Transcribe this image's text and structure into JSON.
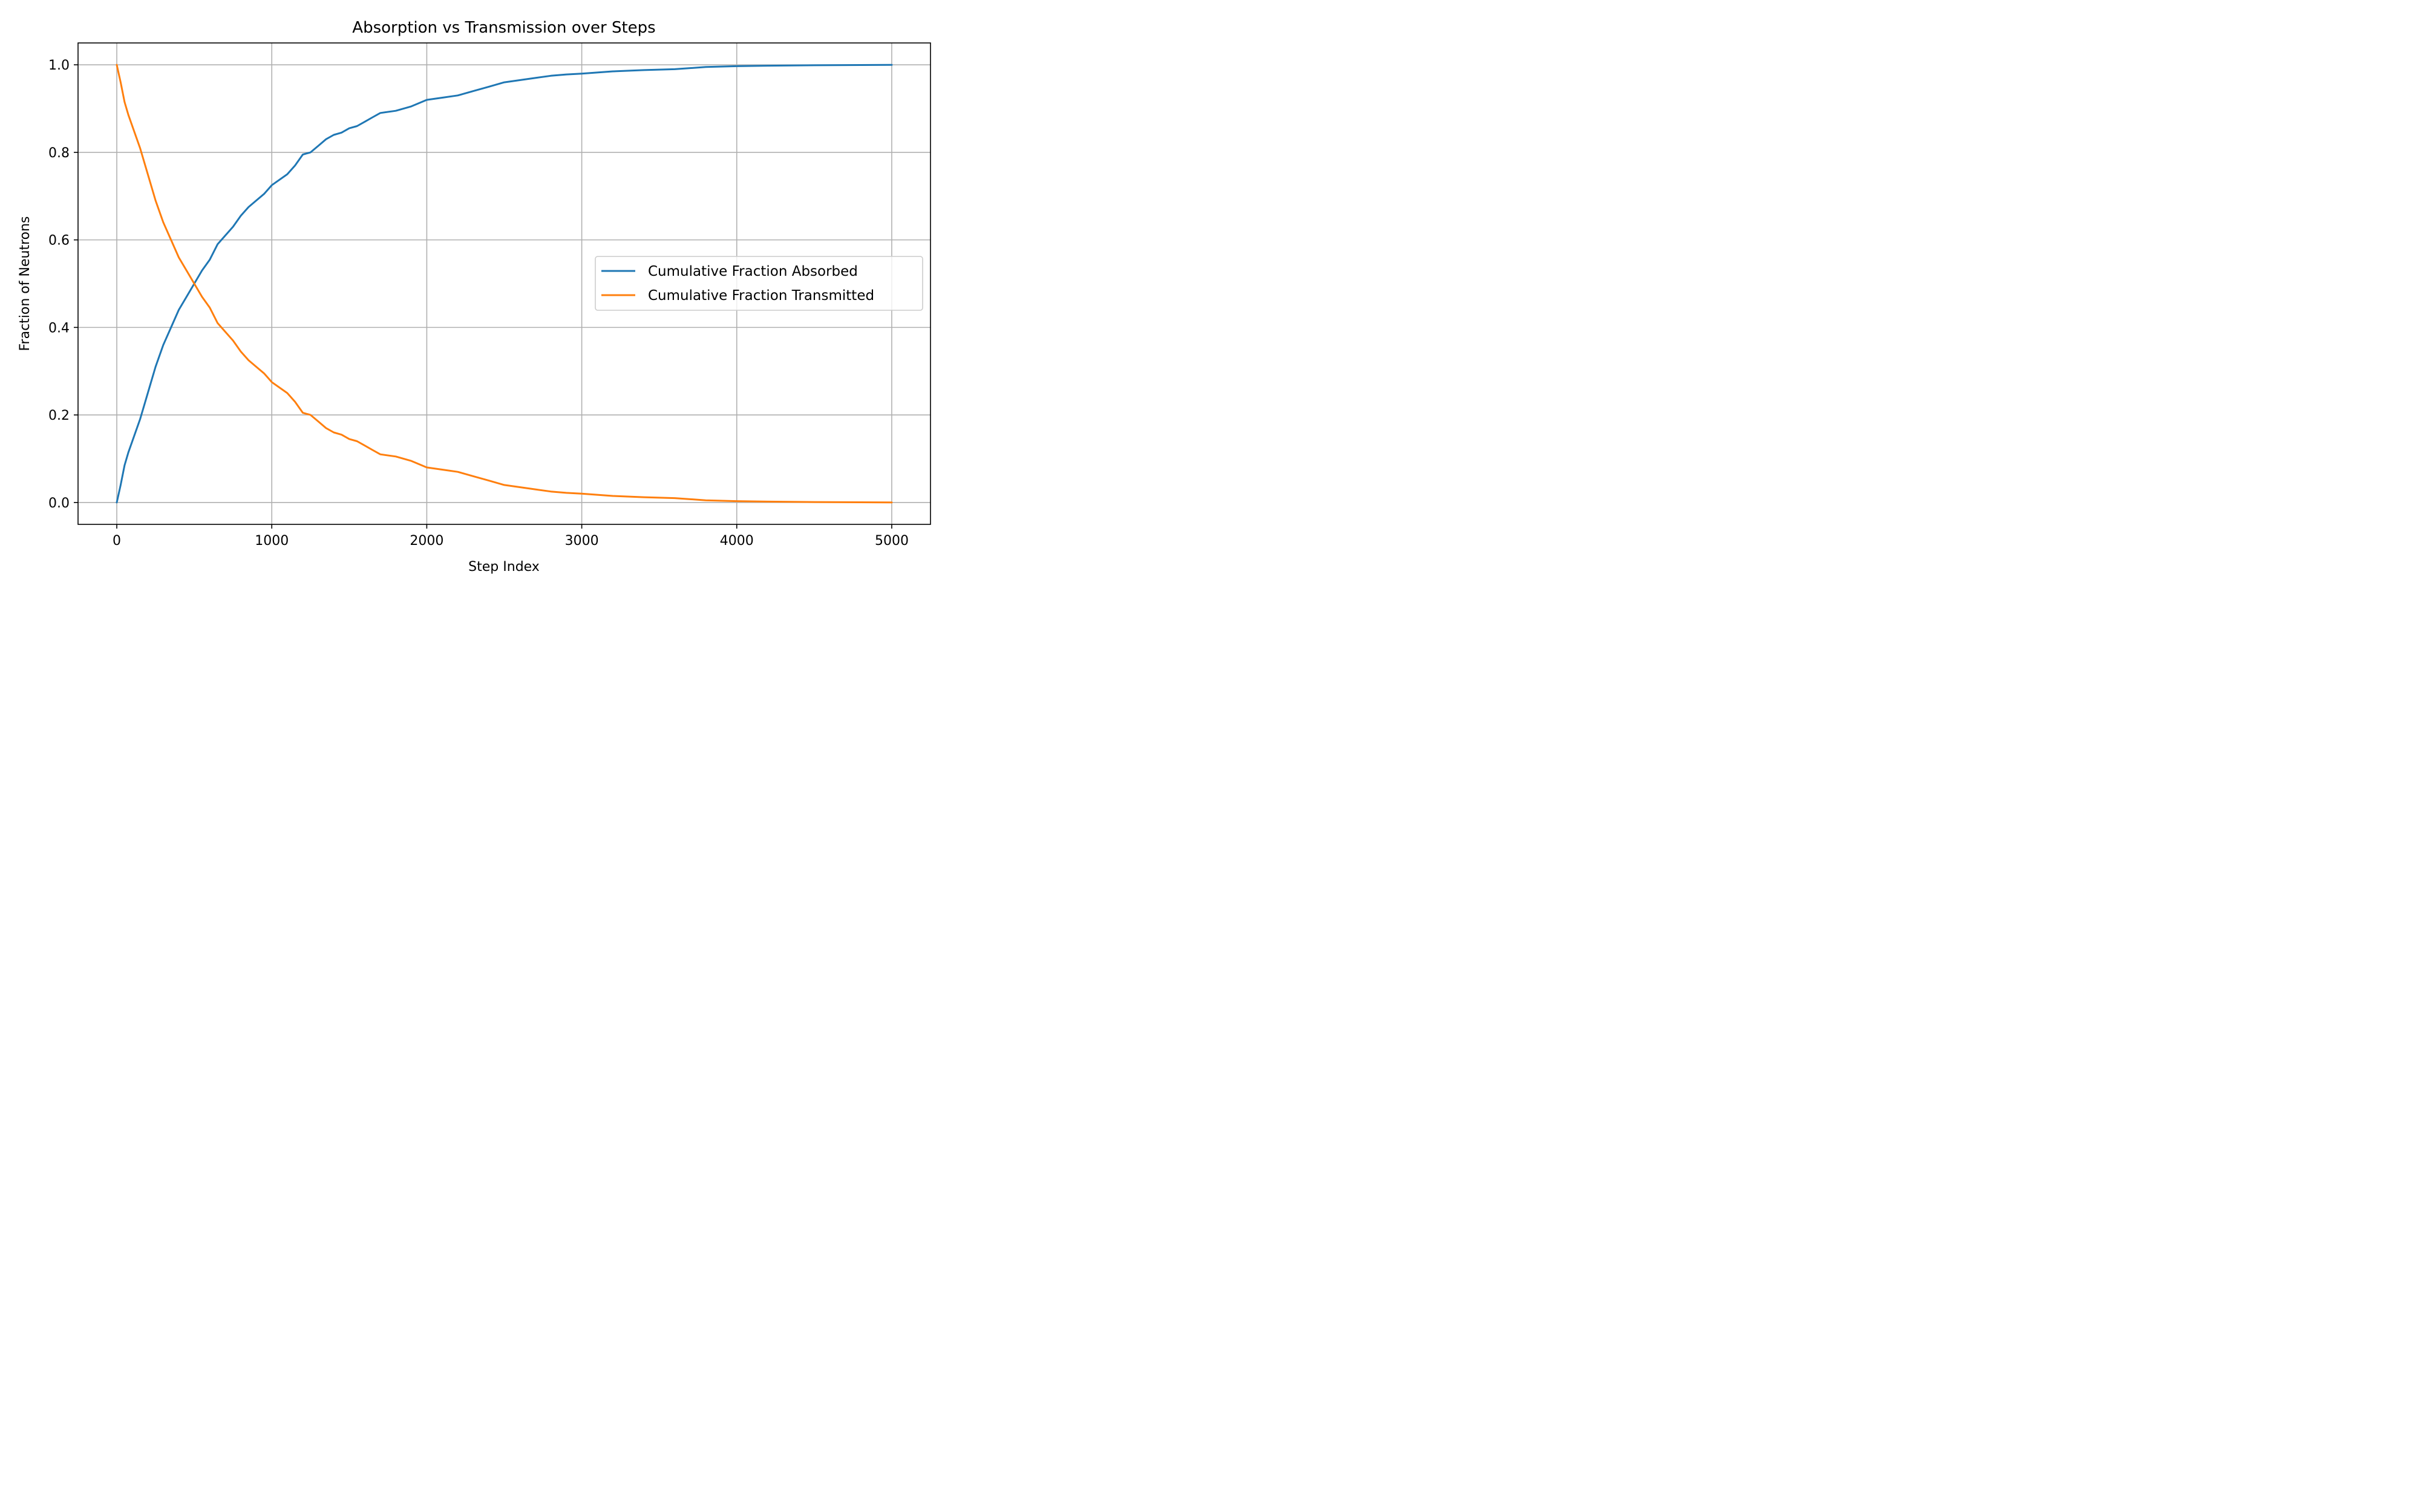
{
  "chart_data": {
    "type": "line",
    "title": "Absorption vs Transmission over Steps",
    "xlabel": "Step Index",
    "ylabel": "Fraction of Neutrons",
    "xlim": [
      -250,
      5250
    ],
    "ylim": [
      -0.05,
      1.05
    ],
    "xticks": [
      0,
      1000,
      2000,
      3000,
      4000,
      5000
    ],
    "xtick_labels": [
      "0",
      "1000",
      "2000",
      "3000",
      "4000",
      "5000"
    ],
    "yticks": [
      0.0,
      0.2,
      0.4,
      0.6,
      0.8,
      1.0
    ],
    "ytick_labels": [
      "0.0",
      "0.2",
      "0.4",
      "0.6",
      "0.8",
      "1.0"
    ],
    "grid": true,
    "legend_position": "center-right",
    "series": [
      {
        "name": "Cumulative Fraction Absorbed",
        "color": "#1f77b4",
        "x": [
          0,
          25,
          50,
          75,
          100,
          150,
          200,
          250,
          300,
          350,
          400,
          450,
          500,
          550,
          600,
          650,
          700,
          750,
          800,
          850,
          900,
          950,
          1000,
          1100,
          1150,
          1200,
          1250,
          1300,
          1350,
          1400,
          1450,
          1500,
          1550,
          1600,
          1650,
          1700,
          1800,
          1900,
          2000,
          2100,
          2200,
          2300,
          2400,
          2500,
          2600,
          2700,
          2800,
          2900,
          3000,
          3200,
          3400,
          3600,
          3800,
          4000,
          4200,
          4500,
          5000
        ],
        "values": [
          0.0,
          0.04,
          0.085,
          0.115,
          0.14,
          0.19,
          0.25,
          0.31,
          0.36,
          0.4,
          0.44,
          0.47,
          0.5,
          0.53,
          0.555,
          0.59,
          0.61,
          0.63,
          0.655,
          0.675,
          0.69,
          0.705,
          0.725,
          0.75,
          0.77,
          0.795,
          0.8,
          0.815,
          0.83,
          0.84,
          0.845,
          0.855,
          0.86,
          0.87,
          0.88,
          0.89,
          0.895,
          0.905,
          0.92,
          0.925,
          0.93,
          0.94,
          0.95,
          0.96,
          0.965,
          0.97,
          0.975,
          0.978,
          0.98,
          0.985,
          0.988,
          0.99,
          0.995,
          0.997,
          0.998,
          0.999,
          1.0
        ]
      },
      {
        "name": "Cumulative Fraction Transmitted",
        "color": "#ff7f0e",
        "x": [
          0,
          25,
          50,
          75,
          100,
          150,
          200,
          250,
          300,
          350,
          400,
          450,
          500,
          550,
          600,
          650,
          700,
          750,
          800,
          850,
          900,
          950,
          1000,
          1100,
          1150,
          1200,
          1250,
          1300,
          1350,
          1400,
          1450,
          1500,
          1550,
          1600,
          1650,
          1700,
          1800,
          1900,
          2000,
          2100,
          2200,
          2300,
          2400,
          2500,
          2600,
          2700,
          2800,
          2900,
          3000,
          3200,
          3400,
          3600,
          3800,
          4000,
          4200,
          4500,
          5000
        ],
        "values": [
          1.0,
          0.96,
          0.915,
          0.885,
          0.86,
          0.81,
          0.75,
          0.69,
          0.64,
          0.6,
          0.56,
          0.53,
          0.5,
          0.47,
          0.445,
          0.41,
          0.39,
          0.37,
          0.345,
          0.325,
          0.31,
          0.295,
          0.275,
          0.25,
          0.23,
          0.205,
          0.2,
          0.185,
          0.17,
          0.16,
          0.155,
          0.145,
          0.14,
          0.13,
          0.12,
          0.11,
          0.105,
          0.095,
          0.08,
          0.075,
          0.07,
          0.06,
          0.05,
          0.04,
          0.035,
          0.03,
          0.025,
          0.022,
          0.02,
          0.015,
          0.012,
          0.01,
          0.005,
          0.003,
          0.002,
          0.001,
          0.0
        ]
      }
    ]
  }
}
